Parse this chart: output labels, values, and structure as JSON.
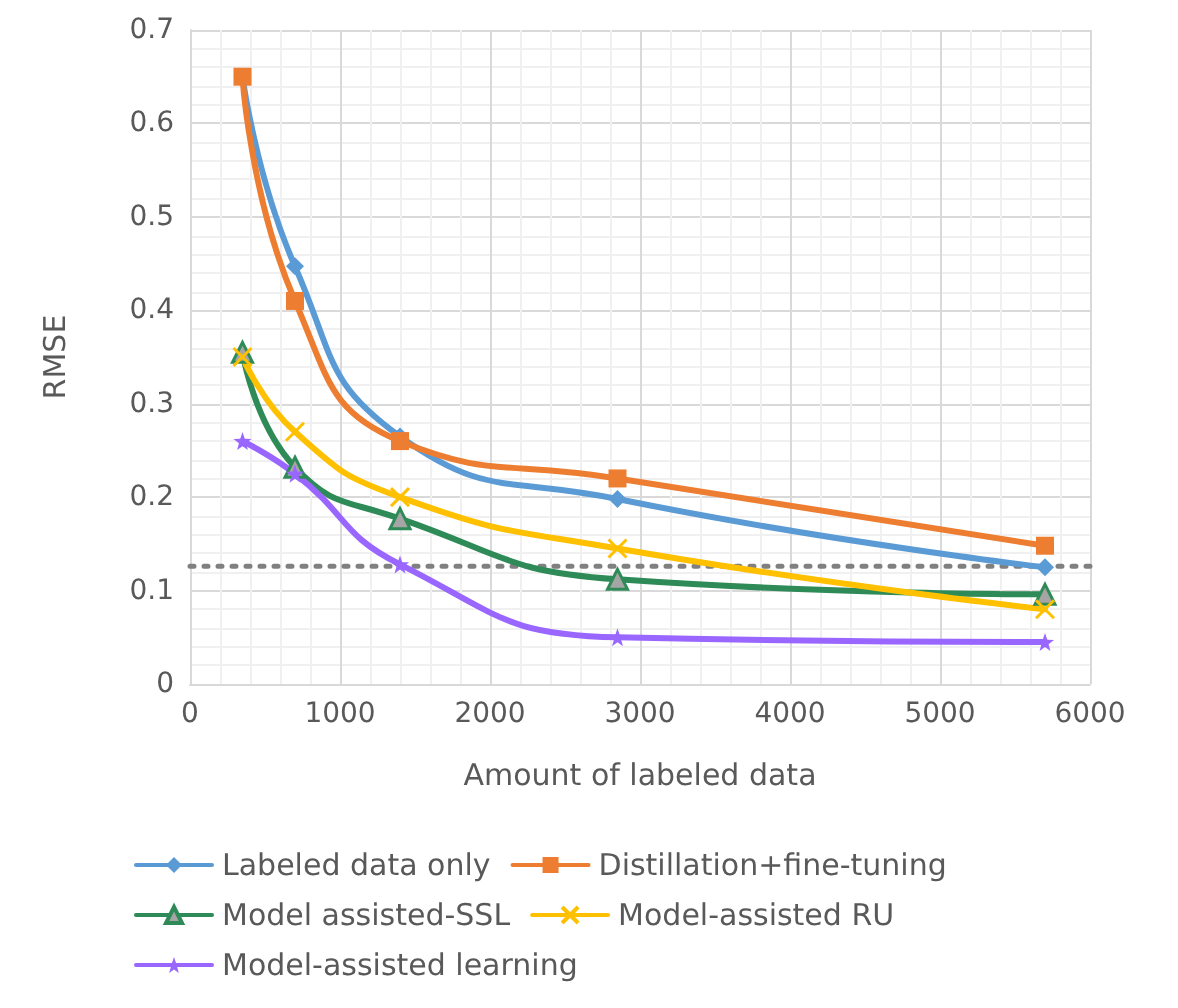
{
  "chart_data": {
    "type": "line",
    "xlabel": "Amount of labeled data",
    "ylabel": "RMSE",
    "x": [
      350,
      700,
      1400,
      2850,
      5700
    ],
    "series": [
      {
        "name": "Labeled data only",
        "color": "#5b9bd5",
        "marker": "diamond",
        "values": [
          0.65,
          0.447,
          0.265,
          0.198,
          0.125
        ]
      },
      {
        "name": "Distillation+fine-tuning",
        "color": "#ed7d31",
        "marker": "square",
        "values": [
          0.65,
          0.41,
          0.26,
          0.22,
          0.148
        ]
      },
      {
        "name": "Model assisted-SSL",
        "color": "#2e8b57",
        "marker": "triangle",
        "values": [
          0.355,
          0.232,
          0.177,
          0.112,
          0.096
        ]
      },
      {
        "name": "Model-assisted RU",
        "color": "#ffc000",
        "marker": "cross",
        "values": [
          0.35,
          0.27,
          0.2,
          0.145,
          0.08
        ]
      },
      {
        "name": "Model-assisted learning",
        "color": "#9966ff",
        "marker": "star",
        "values": [
          0.26,
          0.225,
          0.128,
          0.05,
          0.045
        ]
      }
    ],
    "xlim": [
      0,
      6000
    ],
    "xticks": [
      0,
      1000,
      2000,
      3000,
      4000,
      5000,
      6000
    ],
    "ylim": [
      0,
      0.7
    ],
    "yticks": [
      0,
      0.1,
      0.2,
      0.3,
      0.4,
      0.5,
      0.6,
      0.7
    ],
    "ref_lines": [
      {
        "axis": "y",
        "value": 0.126,
        "color": "#808080",
        "line_style": "dotted"
      }
    ],
    "grid": true,
    "legend": "bottom"
  }
}
